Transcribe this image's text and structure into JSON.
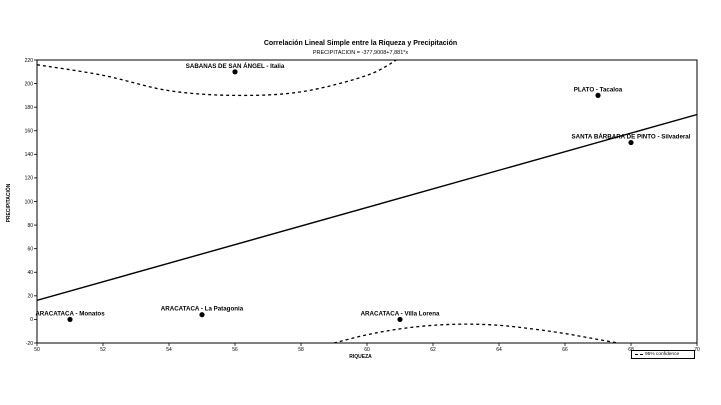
{
  "chart_data": {
    "type": "scatter",
    "title": "Correlación Lineal Simple entre la Riqueza y Precipitación",
    "subtitle": "PRECIPITACION = -377,9008+7,881*x",
    "xlabel": "RIQUEZA",
    "ylabel": "PRECIPITACIÓN",
    "xlim": [
      50,
      70
    ],
    "ylim": [
      -20,
      220
    ],
    "xticks": [
      "50",
      "52",
      "54",
      "56",
      "58",
      "60",
      "62",
      "64",
      "66",
      "68",
      "70"
    ],
    "yticks": [
      "-20",
      "0",
      "20",
      "40",
      "60",
      "80",
      "100",
      "120",
      "140",
      "160",
      "180",
      "200",
      "220"
    ],
    "grid": false,
    "legend_position": "bottom-right",
    "legend": [
      "95% confidence"
    ],
    "points": [
      {
        "x": 51,
        "y": 0,
        "label": "ARACATACA - Monatos"
      },
      {
        "x": 55,
        "y": 4,
        "label": "ARACATACA - La Patagonia"
      },
      {
        "x": 56,
        "y": 210,
        "label": "SABANAS DE SAN ÁNGEL - Italia"
      },
      {
        "x": 61,
        "y": 0,
        "label": "ARACATACA - Villa Lorena"
      },
      {
        "x": 67,
        "y": 190,
        "label": "PLATO - Tacaloa"
      },
      {
        "x": 68,
        "y": 150,
        "label": "SANTA BÁRBARA DE PINTO - Silvaderal"
      }
    ],
    "regression": {
      "intercept": -377.9008,
      "slope": 7.881
    },
    "confidence_upper": [
      [
        50,
        216
      ],
      [
        52,
        207
      ],
      [
        54,
        194
      ],
      [
        56,
        190
      ],
      [
        58,
        193
      ],
      [
        60,
        207
      ],
      [
        61,
        222
      ]
    ],
    "confidence_lower": [
      [
        59,
        -20
      ],
      [
        60,
        -13
      ],
      [
        61,
        -8
      ],
      [
        62,
        -5
      ],
      [
        63,
        -4
      ],
      [
        64,
        -5
      ],
      [
        65,
        -8
      ],
      [
        66,
        -12
      ],
      [
        67,
        -17
      ],
      [
        68,
        -22
      ]
    ]
  }
}
